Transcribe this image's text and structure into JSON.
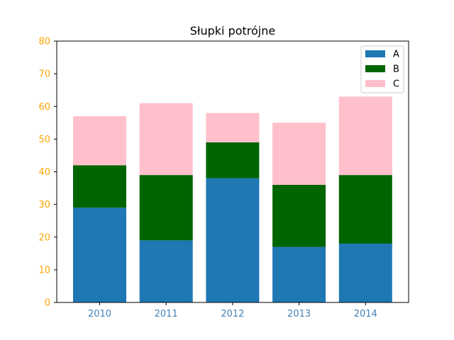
{
  "chart_data": {
    "type": "bar",
    "stacked": true,
    "title": "Słupki potrójne",
    "xlabel": "",
    "ylabel": "",
    "categories": [
      "2010",
      "2011",
      "2012",
      "2013",
      "2014"
    ],
    "series": [
      {
        "name": "A",
        "values": [
          29,
          19,
          38,
          17,
          18
        ],
        "color": "#1f77b4"
      },
      {
        "name": "B",
        "values": [
          13,
          20,
          11,
          19,
          21
        ],
        "color": "#006400"
      },
      {
        "name": "C",
        "values": [
          15,
          22,
          9,
          19,
          24
        ],
        "color": "#ffc0cb"
      }
    ],
    "ylim": [
      0,
      80
    ],
    "yticks": [
      "0",
      "10",
      "20",
      "30",
      "40",
      "50",
      "60",
      "70",
      "80"
    ],
    "legend_position": "top-right",
    "grid": false,
    "colors": {
      "ytick_label": "#ffa500",
      "xtick_label": "#4682b4",
      "axes": "#000000"
    }
  }
}
